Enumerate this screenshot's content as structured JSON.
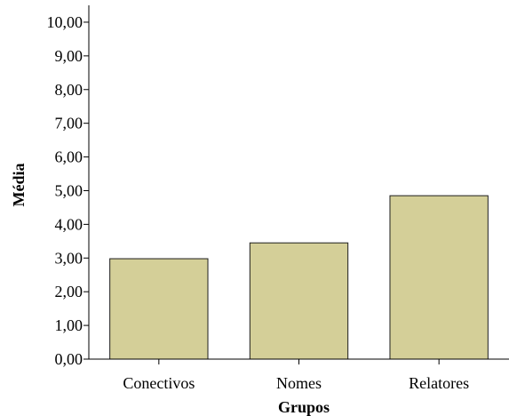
{
  "chart_data": {
    "type": "bar",
    "categories": [
      "Conectivos",
      "Nomes",
      "Relatores"
    ],
    "values": [
      2.98,
      3.45,
      4.85
    ],
    "title": "",
    "xlabel": "Grupos",
    "ylabel": "Média",
    "ylim": [
      0,
      10.5
    ],
    "yticks": [
      "0,00",
      "1,00",
      "2,00",
      "3,00",
      "4,00",
      "5,00",
      "6,00",
      "7,00",
      "8,00",
      "9,00",
      "10,00"
    ],
    "grid": false,
    "legend": "none",
    "colors": {
      "bar_fill": "#d4cf98",
      "bar_stroke": "#1e1e1e",
      "axis": "#000000"
    }
  }
}
